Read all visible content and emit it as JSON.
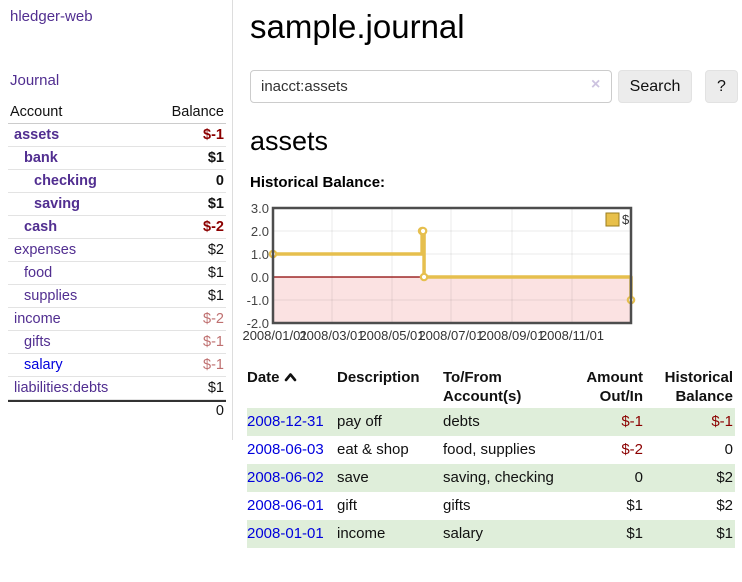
{
  "app": {
    "title": "hledger-web"
  },
  "sidebar": {
    "journal_link": "Journal",
    "header": {
      "account": "Account",
      "balance": "Balance"
    },
    "accounts": [
      {
        "name": "assets",
        "balance": "$-1"
      },
      {
        "name": "bank",
        "balance": "$1"
      },
      {
        "name": "checking",
        "balance": "0"
      },
      {
        "name": "saving",
        "balance": "$1"
      },
      {
        "name": "cash",
        "balance": "$-2"
      },
      {
        "name": "expenses",
        "balance": "$2"
      },
      {
        "name": "food",
        "balance": "$1"
      },
      {
        "name": "supplies",
        "balance": "$1"
      },
      {
        "name": "income",
        "balance": "$-2"
      },
      {
        "name": "gifts",
        "balance": "$-1"
      },
      {
        "name": "salary",
        "balance": "$-1"
      },
      {
        "name": "liabilities:debts",
        "balance": "$1"
      }
    ],
    "total": "0"
  },
  "main": {
    "title": "sample.journal",
    "search": {
      "value": "inacct:assets",
      "clear_icon": "×",
      "search_label": "Search",
      "help_label": "?"
    },
    "account_heading": "assets",
    "chart_heading": "Historical Balance:"
  },
  "chart_data": {
    "type": "line",
    "step": true,
    "title": "Historical Balance:",
    "legend": "$",
    "series_name": "$",
    "x_dates": [
      "2008-01-01",
      "2008-06-01",
      "2008-06-02",
      "2008-06-03",
      "2008-12-31"
    ],
    "points": [
      {
        "x_days": 0,
        "y": 1
      },
      {
        "x_days": 152,
        "y": 2
      },
      {
        "x_days": 153,
        "y": 2
      },
      {
        "x_days": 154,
        "y": 0
      },
      {
        "x_days": 365,
        "y": -1
      }
    ],
    "x_max_days": 365,
    "ylim": [
      -2,
      3
    ],
    "yticks": [
      "3.0",
      "2.0",
      "1.0",
      "0.0",
      "-1.0",
      "-2.0"
    ],
    "xtick_labels": [
      "2008/01/01",
      "2008/03/01",
      "2008/05/01",
      "2008/07/01",
      "2008/09/01",
      "2008/11/01"
    ],
    "xtick_days": [
      0,
      60,
      121,
      182,
      244,
      305
    ],
    "line_color": "#e6bf4e",
    "zero_line_color": "#8b0000",
    "negative_fill": "#fbe2e2",
    "grid": true,
    "legend_position": "top-right"
  },
  "register": {
    "headers": {
      "date": "Date",
      "description": "Description",
      "accounts": "To/From Account(s)",
      "amount": "Amount Out/In",
      "balance": "Historical Balance"
    },
    "rows": [
      {
        "date": "2008-12-31",
        "description": "pay off",
        "accounts": "debts",
        "amount": "$-1",
        "balance": "$-1"
      },
      {
        "date": "2008-06-03",
        "description": "eat & shop",
        "accounts": "food, supplies",
        "amount": "$-2",
        "balance": "0"
      },
      {
        "date": "2008-06-02",
        "description": "save",
        "accounts": "saving, checking",
        "amount": "0",
        "balance": "$2"
      },
      {
        "date": "2008-06-01",
        "description": "gift",
        "accounts": "gifts",
        "amount": "$1",
        "balance": "$2"
      },
      {
        "date": "2008-01-01",
        "description": "income",
        "accounts": "salary",
        "amount": "$1",
        "balance": "$1"
      }
    ]
  }
}
